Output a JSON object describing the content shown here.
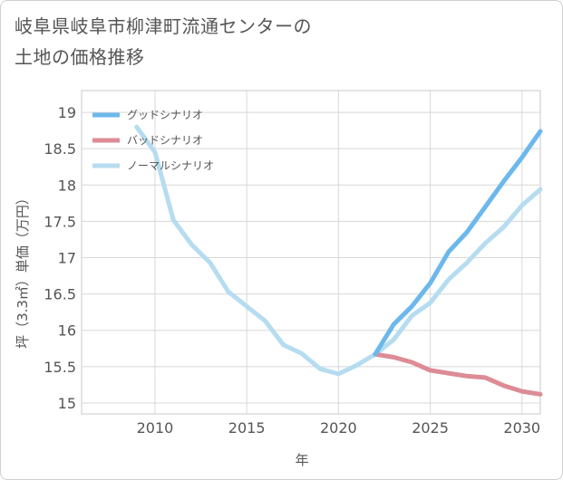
{
  "chart_data": {
    "type": "line",
    "title_lines": [
      "岐阜県岐阜市柳津町流通センターの",
      "土地の価格推移"
    ],
    "xlabel": "年",
    "ylabel": "坪（3.3㎡）単価（万円）",
    "xlim": [
      2006,
      2031
    ],
    "ylim": [
      14.85,
      19.3
    ],
    "xticks": [
      2010,
      2015,
      2020,
      2025,
      2030
    ],
    "yticks": [
      15,
      15.5,
      16,
      16.5,
      17,
      17.5,
      18,
      18.5,
      19
    ],
    "legend_position": "top-left",
    "series": [
      {
        "name": "グッドシナリオ",
        "color": "#6cb8ec",
        "x": [
          2022,
          2023,
          2024,
          2025,
          2026,
          2027,
          2028,
          2029,
          2030,
          2031
        ],
        "values": [
          15.67,
          16.08,
          16.33,
          16.65,
          17.08,
          17.35,
          17.7,
          18.05,
          18.38,
          18.74
        ]
      },
      {
        "name": "バッドシナリオ",
        "color": "#dd8c95",
        "x": [
          2022,
          2023,
          2024,
          2025,
          2026,
          2027,
          2028,
          2029,
          2030,
          2031
        ],
        "values": [
          15.67,
          15.63,
          15.56,
          15.45,
          15.41,
          15.37,
          15.35,
          15.24,
          15.16,
          15.12
        ]
      },
      {
        "name": "ノーマルシナリオ",
        "color": "#b6dcf0",
        "x": [
          2009,
          2010,
          2011,
          2012,
          2013,
          2014,
          2015,
          2016,
          2017,
          2018,
          2019,
          2020,
          2021,
          2022,
          2023,
          2024,
          2025,
          2026,
          2027,
          2028,
          2029,
          2030,
          2031
        ],
        "values": [
          18.8,
          18.45,
          17.52,
          17.18,
          16.93,
          16.53,
          16.33,
          16.13,
          15.8,
          15.68,
          15.47,
          15.4,
          15.52,
          15.67,
          15.87,
          16.2,
          16.38,
          16.7,
          16.93,
          17.2,
          17.42,
          17.72,
          17.94
        ]
      }
    ]
  }
}
